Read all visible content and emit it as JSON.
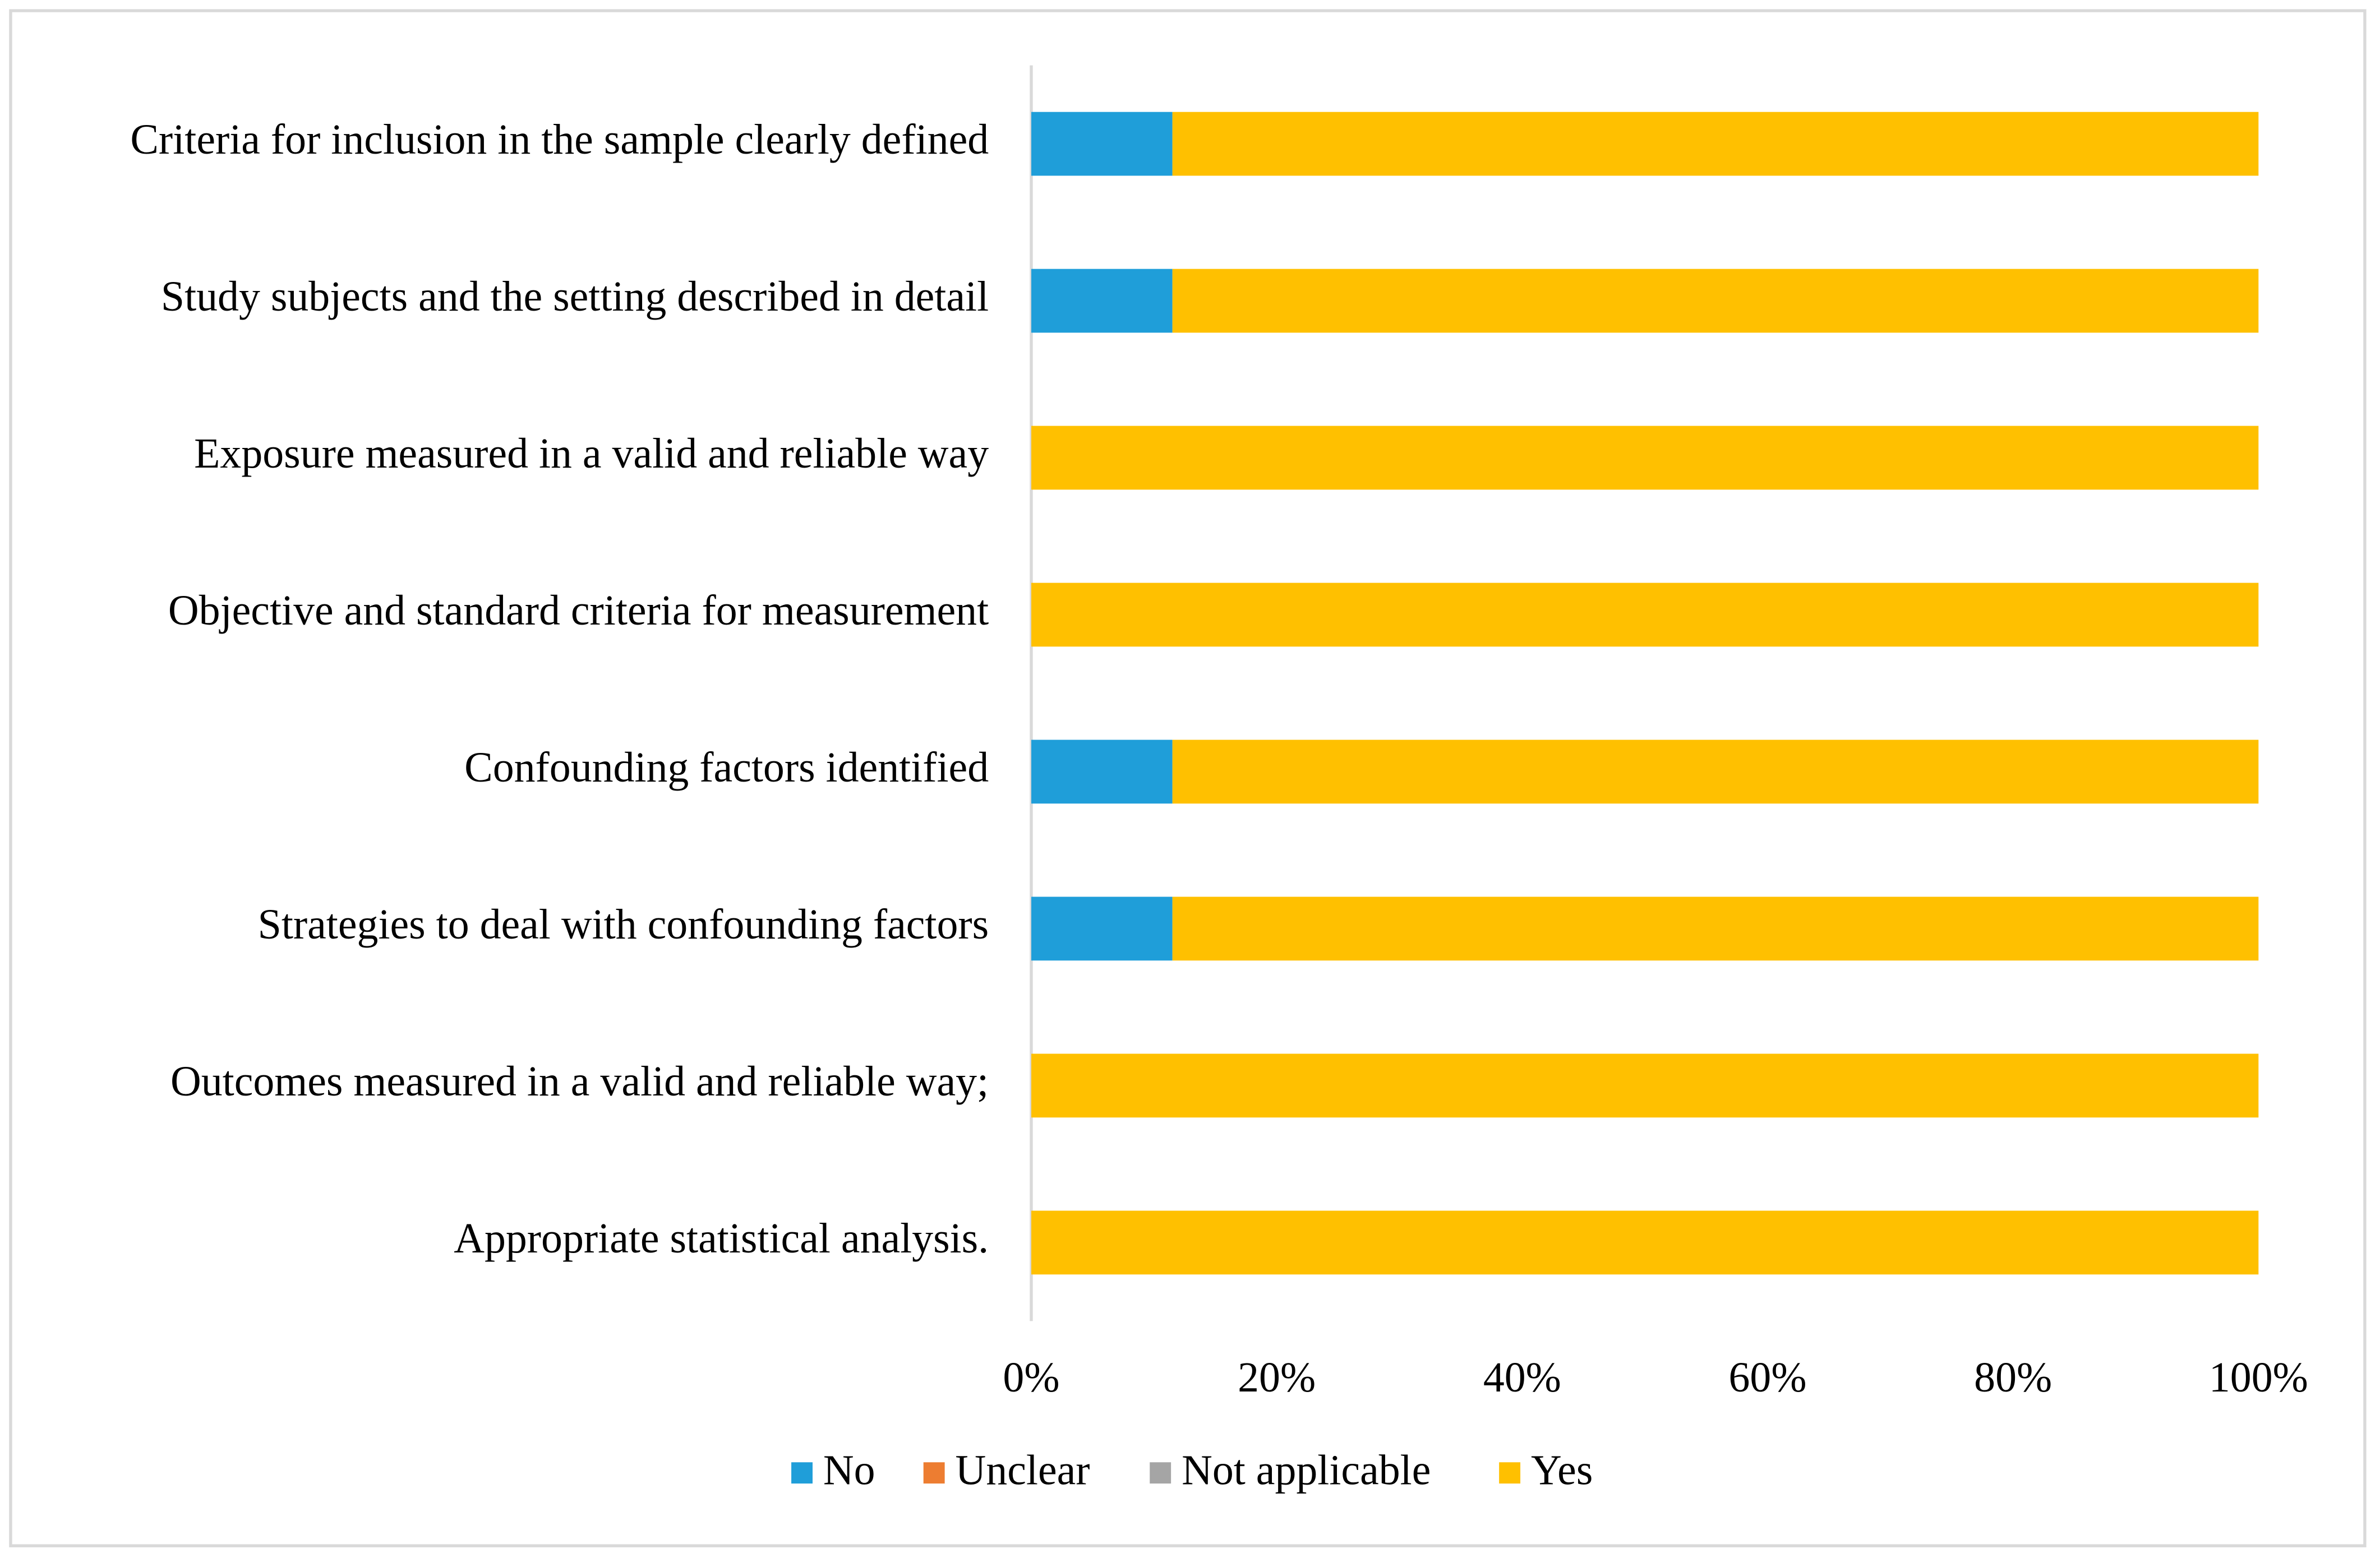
{
  "chart_data": {
    "type": "stacked-bar-horizontal",
    "categories": [
      "Criteria for inclusion in the sample clearly defined",
      "Study subjects and the setting described in detail",
      "Exposure measured in a valid and reliable way",
      "Objective and standard criteria for measurement",
      "Confounding factors identified",
      "Strategies to deal with confounding factors",
      "Outcomes measured in a valid and reliable way;",
      "Appropriate statistical analysis."
    ],
    "series": [
      {
        "name": "No",
        "color": "#1f9ed9",
        "values": [
          11.5,
          11.5,
          0,
          0,
          11.5,
          11.5,
          0,
          0
        ]
      },
      {
        "name": "Unclear",
        "color": "#ed7d31",
        "values": [
          0,
          0,
          0,
          0,
          0,
          0,
          0,
          0
        ]
      },
      {
        "name": "Not applicable",
        "color": "#a5a5a5",
        "values": [
          0,
          0,
          0,
          0,
          0,
          0,
          0,
          0
        ]
      },
      {
        "name": "Yes",
        "color": "#ffc000",
        "values": [
          88.5,
          88.5,
          100,
          100,
          88.5,
          88.5,
          100,
          100
        ]
      }
    ],
    "xlim": [
      0,
      100
    ],
    "xticks": [
      {
        "value": 0,
        "label": "0%"
      },
      {
        "value": 20,
        "label": "20%"
      },
      {
        "value": 40,
        "label": "40%"
      },
      {
        "value": 60,
        "label": "60%"
      },
      {
        "value": 80,
        "label": "80%"
      },
      {
        "value": 100,
        "label": "100%"
      }
    ],
    "legend": "bottom",
    "grid": false
  }
}
